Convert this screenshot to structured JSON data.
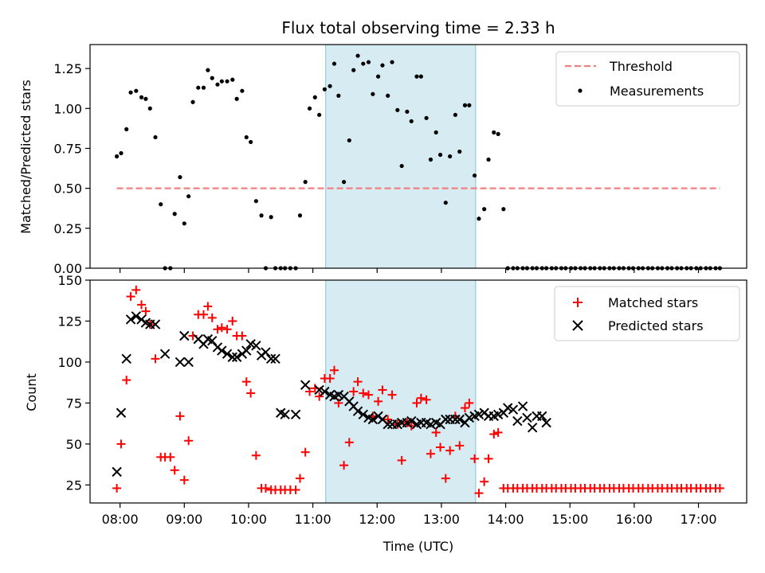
{
  "chart_data": [
    {
      "type": "scatter",
      "title": "Flux total observing time = 2.33 h",
      "xlabel": "",
      "ylabel": "Matched/Predicted stars",
      "xlim": [
        "07:32",
        "17:45"
      ],
      "ylim": [
        0,
        1.4
      ],
      "yticks": [
        0.0,
        0.25,
        0.5,
        0.75,
        1.0,
        1.25
      ],
      "ytick_labels": [
        "0.00",
        "0.25",
        "0.50",
        "0.75",
        "1.00",
        "1.25"
      ],
      "xticks": [
        "08:00",
        "09:00",
        "10:00",
        "11:00",
        "12:00",
        "13:00",
        "14:00",
        "15:00",
        "16:00",
        "17:00"
      ],
      "shaded_interval": {
        "start": "11:12",
        "end": "13:32",
        "color": "#add8e6"
      },
      "legend": {
        "position": "top-right",
        "entries": [
          "Threshold",
          "Measurements"
        ]
      },
      "series": [
        {
          "name": "Threshold",
          "kind": "dashed-line",
          "color": "#f08080",
          "x": [
            "07:57",
            "17:20"
          ],
          "y": [
            0.5,
            0.5
          ]
        },
        {
          "name": "Measurements",
          "kind": "points",
          "color": "#000000",
          "x": [
            "07:57",
            "08:01",
            "08:06",
            "08:10",
            "08:15",
            "08:20",
            "08:24",
            "08:28",
            "08:33",
            "08:38",
            "08:42",
            "08:47",
            "08:51",
            "08:56",
            "09:00",
            "09:04",
            "09:08",
            "09:13",
            "09:18",
            "09:22",
            "09:26",
            "09:31",
            "09:35",
            "09:40",
            "09:45",
            "09:49",
            "09:54",
            "09:58",
            "10:02",
            "10:07",
            "10:12",
            "10:16",
            "10:21",
            "10:25",
            "10:30",
            "10:34",
            "10:39",
            "10:44",
            "10:48",
            "10:53",
            "10:57",
            "11:02",
            "11:06",
            "11:11",
            "11:16",
            "11:20",
            "11:24",
            "11:29",
            "11:34",
            "11:38",
            "11:42",
            "11:47",
            "11:52",
            "11:56",
            "12:01",
            "12:05",
            "12:10",
            "12:14",
            "12:19",
            "12:23",
            "12:28",
            "12:32",
            "12:37",
            "12:41",
            "12:46",
            "12:50",
            "12:55",
            "12:59",
            "13:04",
            "13:08",
            "13:13",
            "13:17",
            "13:22",
            "13:26",
            "13:31",
            "13:35",
            "13:40",
            "13:44",
            "13:49",
            "13:53",
            "13:58",
            "14:02",
            "14:07",
            "14:11",
            "14:16",
            "14:20",
            "14:25",
            "14:29",
            "14:34",
            "14:38",
            "14:43",
            "14:47",
            "14:52",
            "14:56",
            "15:01",
            "15:05",
            "15:10",
            "15:14",
            "15:19",
            "15:23",
            "15:28",
            "15:32",
            "15:37",
            "15:41",
            "15:46",
            "15:50",
            "15:55",
            "15:59",
            "16:04",
            "16:08",
            "16:13",
            "16:17",
            "16:22",
            "16:26",
            "16:31",
            "16:35",
            "16:40",
            "16:44",
            "16:49",
            "16:53",
            "16:58",
            "17:02",
            "17:07",
            "17:11",
            "17:16",
            "17:20"
          ],
          "y": [
            0.7,
            0.72,
            0.87,
            1.1,
            1.11,
            1.07,
            1.06,
            1.0,
            0.82,
            0.4,
            0.0,
            0.0,
            0.34,
            0.57,
            0.28,
            0.45,
            1.04,
            1.13,
            1.13,
            1.24,
            1.19,
            1.15,
            1.17,
            1.17,
            1.18,
            1.06,
            1.11,
            0.82,
            0.79,
            0.42,
            0.33,
            0.0,
            0.32,
            0.0,
            0.0,
            0.0,
            0.0,
            0.0,
            0.33,
            0.54,
            1.0,
            1.07,
            0.96,
            1.12,
            1.14,
            1.28,
            1.08,
            0.54,
            0.8,
            1.24,
            1.33,
            1.28,
            1.29,
            1.09,
            1.2,
            1.27,
            1.08,
            1.29,
            0.99,
            0.64,
            0.98,
            0.92,
            1.2,
            1.2,
            0.94,
            0.68,
            0.85,
            0.71,
            0.41,
            0.7,
            0.96,
            0.73,
            1.02,
            1.02,
            0.58,
            0.31,
            0.37,
            0.68,
            0.85,
            0.84,
            0.37,
            0.0,
            0.0,
            0.0,
            0.0,
            0.0,
            0.0,
            0.0,
            0.0,
            0.0,
            0.0,
            0.0,
            0.0,
            0.0,
            0.0,
            0.0,
            0.0,
            0.0,
            0.0,
            0.0,
            0.0,
            0.0,
            0.0,
            0.0,
            0.0,
            0.0,
            0.0,
            0.0,
            0.0,
            0.0,
            0.0,
            0.0,
            0.0,
            0.0,
            0.0,
            0.0,
            0.0,
            0.0,
            0.0,
            0.0,
            0.0,
            0.0,
            0.0,
            0.0,
            0.0,
            0.0
          ]
        }
      ]
    },
    {
      "type": "scatter",
      "title": "",
      "xlabel": "Time (UTC)",
      "ylabel": "Count",
      "xlim": [
        "07:32",
        "17:45"
      ],
      "ylim": [
        14,
        150
      ],
      "yticks": [
        25,
        50,
        75,
        100,
        125,
        150
      ],
      "ytick_labels": [
        "25",
        "50",
        "75",
        "100",
        "125",
        "150"
      ],
      "xticks": [
        "08:00",
        "09:00",
        "10:00",
        "11:00",
        "12:00",
        "13:00",
        "14:00",
        "15:00",
        "16:00",
        "17:00"
      ],
      "xtick_labels": [
        "08:00",
        "09:00",
        "10:00",
        "11:00",
        "12:00",
        "13:00",
        "14:00",
        "15:00",
        "16:00",
        "17:00"
      ],
      "shaded_interval": {
        "start": "11:12",
        "end": "13:32",
        "color": "#add8e6"
      },
      "legend": {
        "position": "top-right",
        "entries": [
          "Matched stars",
          "Predicted stars"
        ]
      },
      "series": [
        {
          "name": "Matched stars",
          "marker": "plus",
          "color": "#ff0000",
          "x": [
            "07:57",
            "08:01",
            "08:06",
            "08:10",
            "08:15",
            "08:20",
            "08:24",
            "08:28",
            "08:33",
            "08:38",
            "08:42",
            "08:47",
            "08:51",
            "08:56",
            "09:00",
            "09:04",
            "09:08",
            "09:13",
            "09:18",
            "09:22",
            "09:26",
            "09:31",
            "09:35",
            "09:40",
            "09:45",
            "09:49",
            "09:54",
            "09:58",
            "10:02",
            "10:07",
            "10:12",
            "10:16",
            "10:21",
            "10:25",
            "10:30",
            "10:34",
            "10:39",
            "10:44",
            "10:48",
            "10:53",
            "10:57",
            "11:02",
            "11:06",
            "11:11",
            "11:16",
            "11:20",
            "11:24",
            "11:29",
            "11:34",
            "11:38",
            "11:42",
            "11:47",
            "11:52",
            "11:56",
            "12:01",
            "12:05",
            "12:10",
            "12:14",
            "12:19",
            "12:23",
            "12:28",
            "12:32",
            "12:37",
            "12:41",
            "12:46",
            "12:50",
            "12:55",
            "12:59",
            "13:04",
            "13:08",
            "13:13",
            "13:17",
            "13:22",
            "13:26",
            "13:31",
            "13:35",
            "13:40",
            "13:44",
            "13:49",
            "13:53",
            "13:58",
            "14:02",
            "14:07",
            "14:11",
            "14:16",
            "14:20",
            "14:25",
            "14:29",
            "14:34",
            "14:38",
            "14:43",
            "14:47",
            "14:52",
            "14:56",
            "15:01",
            "15:05",
            "15:10",
            "15:14",
            "15:19",
            "15:23",
            "15:28",
            "15:32",
            "15:37",
            "15:41",
            "15:46",
            "15:50",
            "15:55",
            "15:59",
            "16:04",
            "16:08",
            "16:13",
            "16:17",
            "16:22",
            "16:26",
            "16:31",
            "16:35",
            "16:40",
            "16:44",
            "16:49",
            "16:53",
            "16:58",
            "17:02",
            "17:07",
            "17:11",
            "17:16",
            "17:20"
          ],
          "y": [
            23,
            50,
            89,
            140,
            144,
            135,
            131,
            123,
            102,
            42,
            42,
            42,
            34,
            67,
            28,
            52,
            116,
            129,
            129,
            134,
            127,
            120,
            121,
            120,
            125,
            116,
            116,
            88,
            81,
            43,
            23,
            23,
            22,
            22,
            22,
            22,
            22,
            22,
            29,
            45,
            82,
            84,
            79,
            90,
            90,
            95,
            75,
            37,
            51,
            82,
            88,
            81,
            80,
            67,
            76,
            83,
            65,
            80,
            62,
            40,
            63,
            61,
            75,
            78,
            77,
            44,
            57,
            48,
            29,
            46,
            67,
            49,
            72,
            75,
            41,
            20,
            27,
            41,
            56,
            57,
            23,
            23,
            23,
            23,
            23,
            23,
            23,
            23,
            23,
            23,
            23,
            23,
            23,
            23,
            23,
            23,
            23,
            23,
            23,
            23,
            23,
            23,
            23,
            23,
            23,
            23,
            23,
            23,
            23,
            23,
            23,
            23,
            23,
            23,
            23,
            23,
            23,
            23,
            23,
            23,
            23,
            23,
            23,
            23,
            23,
            23
          ]
        },
        {
          "name": "Predicted stars",
          "marker": "x",
          "color": "#000000",
          "x": [
            "07:57",
            "08:01",
            "08:06",
            "08:10",
            "08:15",
            "08:20",
            "08:24",
            "08:28",
            "08:33",
            "08:42",
            "08:56",
            "09:00",
            "09:04",
            "09:13",
            "09:18",
            "09:22",
            "09:26",
            "09:31",
            "09:35",
            "09:40",
            "09:45",
            "09:49",
            "09:54",
            "09:58",
            "10:02",
            "10:07",
            "10:12",
            "10:16",
            "10:21",
            "10:25",
            "10:30",
            "10:34",
            "10:44",
            "10:53",
            "11:06",
            "11:11",
            "11:16",
            "11:20",
            "11:24",
            "11:29",
            "11:34",
            "11:38",
            "11:42",
            "11:47",
            "11:52",
            "11:56",
            "12:01",
            "12:05",
            "12:10",
            "12:14",
            "12:19",
            "12:23",
            "12:28",
            "12:32",
            "12:37",
            "12:41",
            "12:46",
            "12:50",
            "12:55",
            "12:59",
            "13:04",
            "13:08",
            "13:13",
            "13:17",
            "13:22",
            "13:26",
            "13:31",
            "13:35",
            "13:40",
            "13:44",
            "13:49",
            "13:53",
            "13:58",
            "14:02",
            "14:07",
            "14:11",
            "14:16",
            "14:20",
            "14:25",
            "14:29",
            "14:34",
            "14:38"
          ],
          "y": [
            33,
            69,
            102,
            126,
            128,
            126,
            124,
            123,
            123,
            105,
            100,
            116,
            100,
            114,
            111,
            114,
            113,
            109,
            107,
            105,
            103,
            103,
            105,
            107,
            111,
            110,
            104,
            106,
            102,
            102,
            69,
            68,
            68,
            86,
            83,
            82,
            80,
            79,
            80,
            79,
            76,
            73,
            70,
            68,
            66,
            65,
            67,
            65,
            62,
            62,
            62,
            63,
            63,
            64,
            62,
            63,
            63,
            62,
            63,
            62,
            65,
            65,
            65,
            65,
            63,
            66,
            67,
            68,
            69,
            67,
            67,
            68,
            69,
            72,
            71,
            64,
            73,
            66,
            60,
            67,
            67,
            63
          ]
        }
      ]
    }
  ]
}
